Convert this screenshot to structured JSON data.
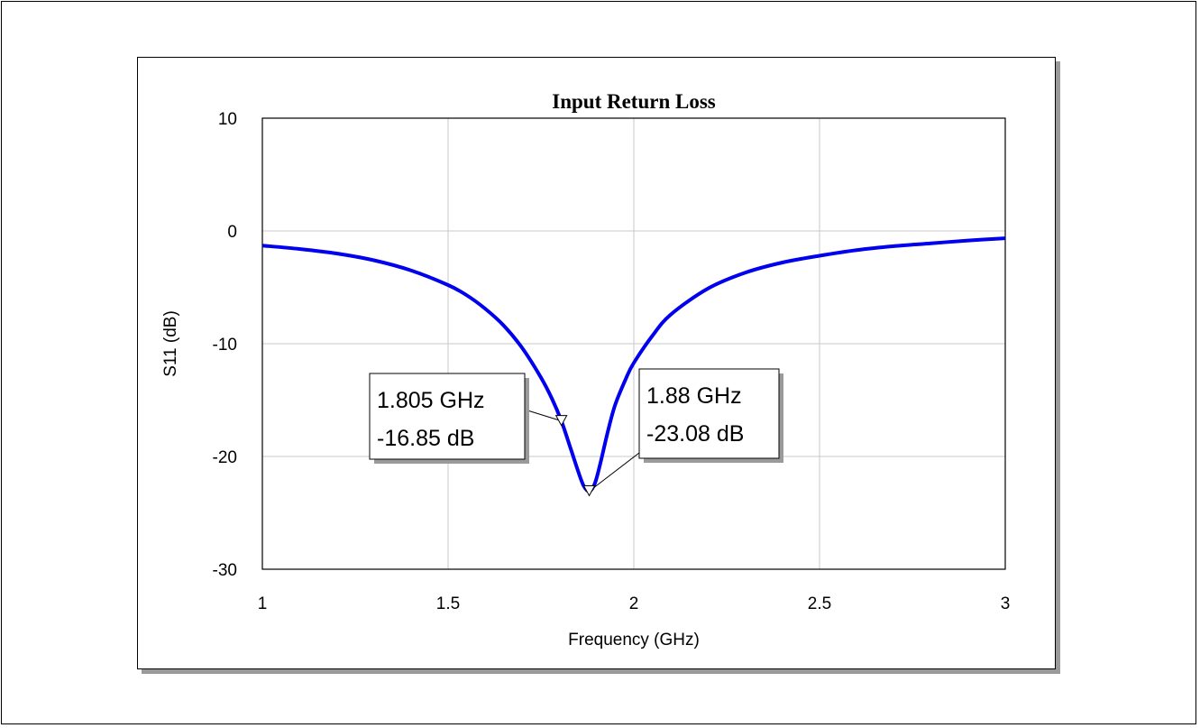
{
  "chart_data": {
    "type": "line",
    "title": "Input Return Loss",
    "xlabel": "Frequency (GHz)",
    "ylabel": "S11 (dB)",
    "xlim": [
      1,
      3
    ],
    "ylim": [
      -30,
      10
    ],
    "x_ticks": [
      "1",
      "1.5",
      "2",
      "2.5",
      "3"
    ],
    "y_ticks": [
      "10",
      "0",
      "-10",
      "-20",
      "-30"
    ],
    "grid": true,
    "series": [
      {
        "color": "#0000ee",
        "x": [
          1.0,
          1.1,
          1.2,
          1.3,
          1.4,
          1.5,
          1.55,
          1.6,
          1.65,
          1.7,
          1.75,
          1.78,
          1.805,
          1.83,
          1.85,
          1.865,
          1.88,
          1.895,
          1.91,
          1.93,
          1.95,
          1.98,
          2.0,
          2.05,
          2.1,
          2.2,
          2.3,
          2.4,
          2.5,
          2.6,
          2.7,
          2.8,
          2.9,
          3.0
        ],
        "y": [
          -1.3,
          -1.6,
          -2.0,
          -2.6,
          -3.5,
          -4.8,
          -5.7,
          -6.9,
          -8.4,
          -10.4,
          -13.0,
          -14.9,
          -16.85,
          -19.3,
          -21.3,
          -22.6,
          -23.08,
          -22.4,
          -20.6,
          -17.8,
          -15.4,
          -13.0,
          -11.7,
          -9.3,
          -7.4,
          -5.1,
          -3.7,
          -2.8,
          -2.2,
          -1.7,
          -1.35,
          -1.1,
          -0.85,
          -0.65
        ]
      }
    ],
    "markers": [
      {
        "x": 1.805,
        "y": -16.85,
        "label_freq": "1.805 GHz",
        "label_db": "-16.85 dB"
      },
      {
        "x": 1.88,
        "y": -23.08,
        "label_freq": "1.88 GHz",
        "label_db": "-23.08 dB"
      }
    ]
  }
}
